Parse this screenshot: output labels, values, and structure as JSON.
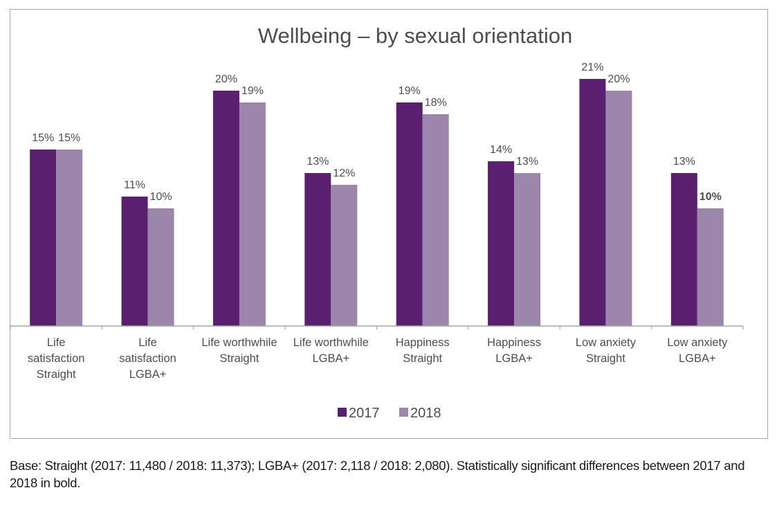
{
  "chart_data": {
    "type": "bar",
    "title": "Wellbeing – by sexual orientation",
    "xlabel": "",
    "ylabel": "",
    "ylim": [
      0,
      25
    ],
    "grid": false,
    "legend_position": "bottom",
    "categories": [
      [
        "Life",
        "satisfaction",
        "Straight"
      ],
      [
        "Life",
        "satisfaction",
        "LGBA+"
      ],
      [
        "Life worthwhile",
        "Straight"
      ],
      [
        "Life worthwhile",
        "LGBA+"
      ],
      [
        "Happiness",
        "Straight"
      ],
      [
        "Happiness",
        "LGBA+"
      ],
      [
        "Low anxiety",
        "Straight"
      ],
      [
        "Low anxiety",
        "LGBA+"
      ]
    ],
    "series": [
      {
        "name": "2017",
        "color": "#5a1f6e",
        "values": [
          15,
          11,
          20,
          13,
          19,
          14,
          21,
          13
        ],
        "bold": [
          false,
          false,
          false,
          false,
          false,
          false,
          false,
          false
        ]
      },
      {
        "name": "2018",
        "color": "#9b87ab",
        "values": [
          15,
          10,
          19,
          12,
          18,
          13,
          20,
          10
        ],
        "bold": [
          false,
          false,
          false,
          false,
          false,
          false,
          false,
          true
        ]
      }
    ],
    "value_suffix": "%"
  },
  "footnote": "Base: Straight (2017: 11,480 / 2018: 11,373); LGBA+ (2017: 2,118 / 2018: 2,080). Statistically significant differences between 2017 and 2018 in bold."
}
